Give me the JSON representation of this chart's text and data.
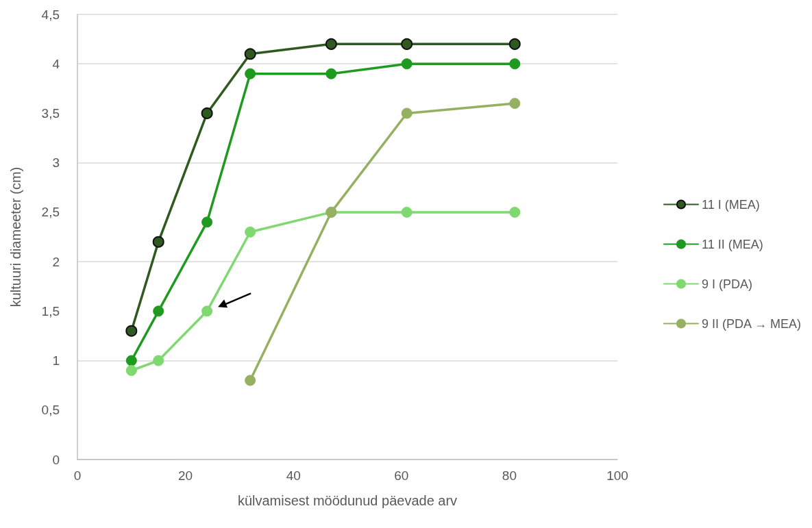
{
  "chart_data": {
    "type": "line",
    "xlabel": "külvamisest möödunud päevade arv",
    "ylabel": "kultuuri diameeter (cm)",
    "x": [
      10,
      15,
      24,
      32,
      47,
      61,
      81
    ],
    "series": [
      {
        "name": "11 I (MEA)",
        "color": "#2e5a1f",
        "values": [
          1.3,
          2.2,
          3.5,
          4.1,
          4.2,
          4.2,
          4.2
        ]
      },
      {
        "name": "11 II (MEA)",
        "color": "#1f9a1f",
        "values": [
          1.0,
          1.5,
          2.4,
          3.9,
          3.9,
          4.0,
          4.0
        ]
      },
      {
        "name": "9 I (PDA)",
        "color": "#80d870",
        "values": [
          0.9,
          1.0,
          1.5,
          2.3,
          2.5,
          2.5,
          2.5
        ]
      },
      {
        "name": "9 II (PDA → MEA)",
        "color": "#96b062",
        "x": [
          32,
          47,
          61,
          81
        ],
        "values": [
          0.8,
          2.5,
          3.5,
          3.6
        ]
      }
    ],
    "xlim": [
      0,
      100
    ],
    "xticks": [
      0,
      20,
      40,
      60,
      80,
      100
    ],
    "ylim": [
      0,
      4.5
    ],
    "yticks": [
      0,
      {
        "value": 0.5,
        "label": "0,5"
      },
      1,
      {
        "value": 1.5,
        "label": "1,5"
      },
      2,
      {
        "value": 2.5,
        "label": "2,5"
      },
      3,
      {
        "value": 3.5,
        "label": "3,5"
      },
      4,
      {
        "value": 4.5,
        "label": "4,5"
      }
    ],
    "grid": "y",
    "legend": "right",
    "marker": "circle",
    "line_style": "solid"
  }
}
